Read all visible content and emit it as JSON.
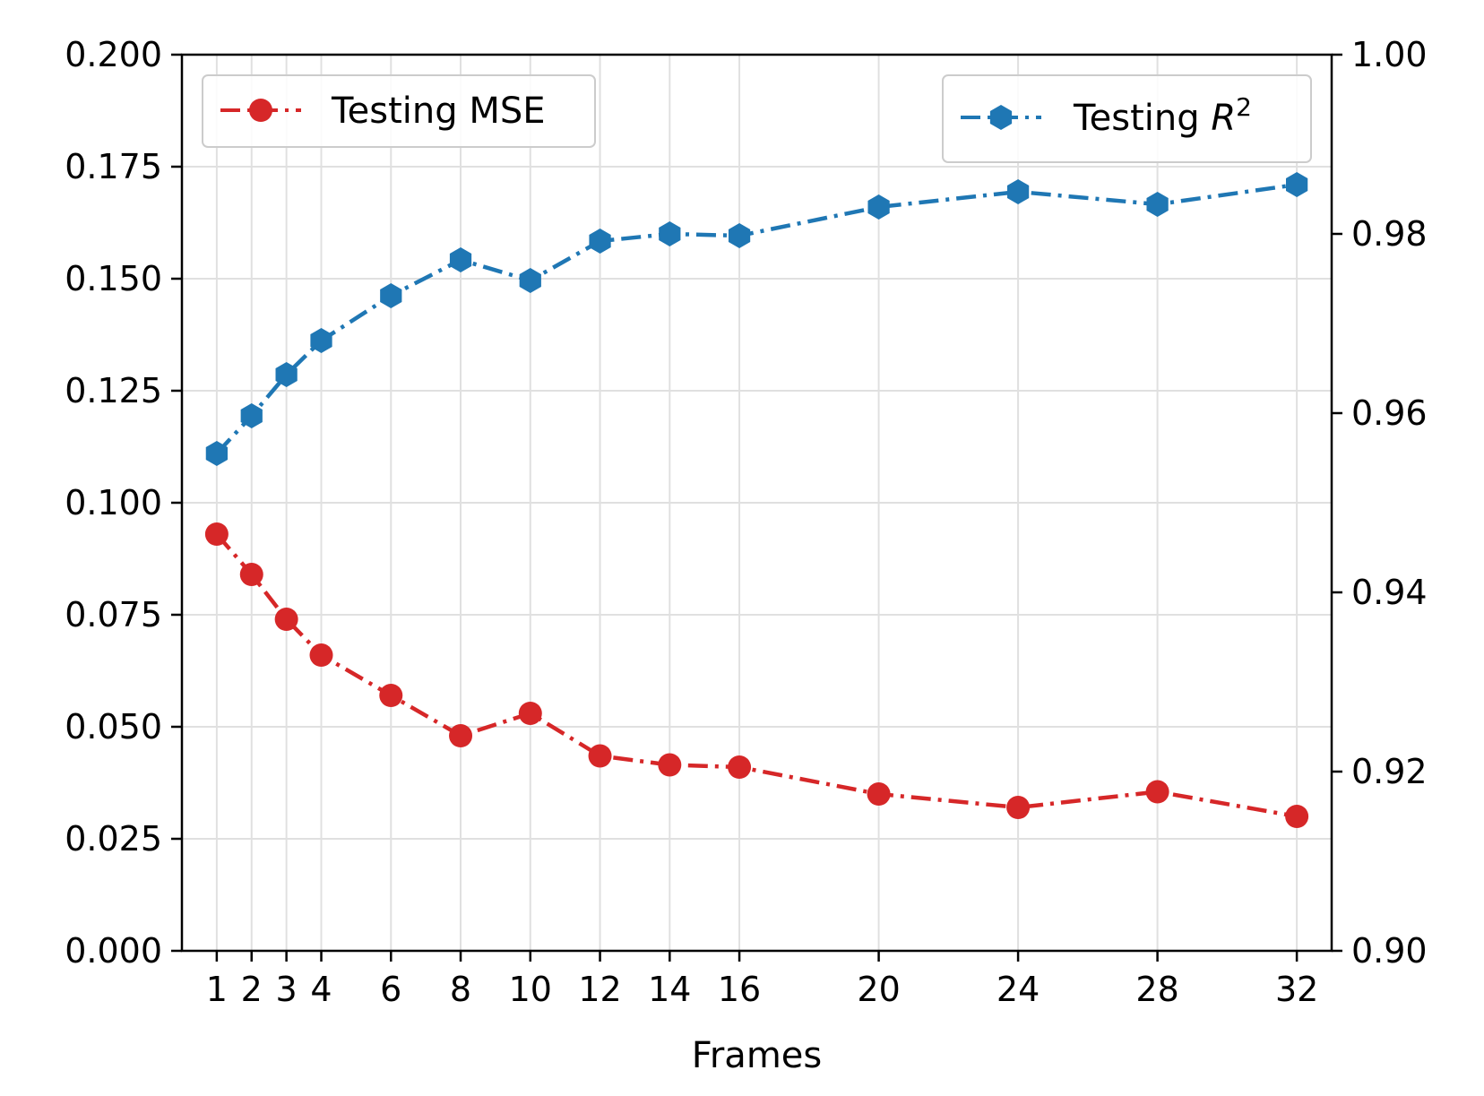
{
  "chart_data": {
    "type": "line",
    "xlabel": "Frames",
    "x": [
      1,
      2,
      3,
      4,
      6,
      8,
      10,
      12,
      14,
      16,
      20,
      24,
      28,
      32
    ],
    "xticks": [
      "1",
      "2",
      "3",
      "4",
      "6",
      "8",
      "10",
      "12",
      "14",
      "16",
      "20",
      "24",
      "28",
      "32"
    ],
    "xlim": [
      0,
      33
    ],
    "grid": true,
    "left_axis": {
      "ylim": [
        0,
        0.2
      ],
      "ticks": [
        "0.000",
        "0.025",
        "0.050",
        "0.075",
        "0.100",
        "0.125",
        "0.150",
        "0.175",
        "0.200"
      ]
    },
    "right_axis": {
      "ylim": [
        0.9,
        1.0
      ],
      "ticks": [
        "0.90",
        "0.92",
        "0.94",
        "0.96",
        "0.98",
        "1.00"
      ]
    },
    "series": [
      {
        "name": "Testing MSE",
        "axis": "left",
        "color": "#d62728",
        "marker": "circle",
        "values": [
          0.093,
          0.084,
          0.074,
          0.066,
          0.057,
          0.048,
          0.053,
          0.0435,
          0.0415,
          0.041,
          0.035,
          0.032,
          0.0355,
          0.03
        ]
      },
      {
        "name_prefix": "Testing ",
        "name_symbol": "R",
        "name_sup": "2",
        "axis": "right",
        "color": "#1f77b4",
        "marker": "hexagon",
        "values": [
          0.9555,
          0.9597,
          0.9643,
          0.9681,
          0.9731,
          0.9771,
          0.9748,
          0.9792,
          0.98,
          0.9798,
          0.983,
          0.9847,
          0.9833,
          0.9855
        ]
      }
    ],
    "legends": [
      {
        "series": 0,
        "placement": "upper-left"
      },
      {
        "series": 1,
        "placement": "upper-right"
      }
    ]
  }
}
